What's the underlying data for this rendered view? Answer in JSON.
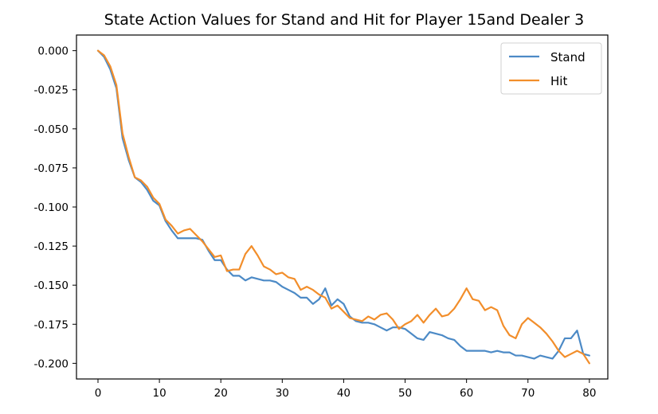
{
  "chart_data": {
    "type": "line",
    "title": "State Action Values for Stand and Hit for Player 15and Dealer 3",
    "xlabel": "",
    "ylabel": "",
    "xlim": [
      -3.5,
      83
    ],
    "ylim": [
      -0.21,
      0.01
    ],
    "xticks": [
      0,
      10,
      20,
      30,
      40,
      50,
      60,
      70,
      80
    ],
    "yticks": [
      0.0,
      -0.025,
      -0.05,
      -0.075,
      -0.1,
      -0.125,
      -0.15,
      -0.175,
      -0.2
    ],
    "ytick_labels": [
      "0.000",
      "-0.025",
      "-0.050",
      "-0.075",
      "-0.100",
      "-0.125",
      "-0.150",
      "-0.175",
      "-0.200"
    ],
    "grid": false,
    "legend_position": "top-right",
    "series": [
      {
        "name": "Stand",
        "color": "#4c8ac6",
        "x": [
          0,
          1,
          2,
          3,
          4,
          5,
          6,
          7,
          8,
          9,
          10,
          11,
          12,
          13,
          14,
          15,
          16,
          17,
          18,
          19,
          20,
          21,
          22,
          23,
          24,
          25,
          26,
          27,
          28,
          29,
          30,
          31,
          32,
          33,
          34,
          35,
          36,
          37,
          38,
          39,
          40,
          41,
          42,
          43,
          44,
          45,
          46,
          47,
          48,
          49,
          50,
          51,
          52,
          53,
          54,
          55,
          56,
          57,
          58,
          59,
          60,
          61,
          62,
          63,
          64,
          65,
          66,
          67,
          68,
          69,
          70,
          71,
          72,
          73,
          74,
          75,
          76,
          77,
          78,
          79,
          80
        ],
        "values": [
          0.0,
          -0.004,
          -0.012,
          -0.024,
          -0.056,
          -0.07,
          -0.081,
          -0.084,
          -0.089,
          -0.096,
          -0.099,
          -0.109,
          -0.115,
          -0.12,
          -0.12,
          -0.12,
          -0.12,
          -0.121,
          -0.128,
          -0.134,
          -0.134,
          -0.14,
          -0.144,
          -0.144,
          -0.147,
          -0.145,
          -0.146,
          -0.147,
          -0.147,
          -0.148,
          -0.151,
          -0.153,
          -0.155,
          -0.158,
          -0.158,
          -0.162,
          -0.159,
          -0.152,
          -0.163,
          -0.159,
          -0.162,
          -0.17,
          -0.173,
          -0.174,
          -0.174,
          -0.175,
          -0.177,
          -0.179,
          -0.177,
          -0.177,
          -0.178,
          -0.181,
          -0.184,
          -0.185,
          -0.18,
          -0.181,
          -0.182,
          -0.184,
          -0.185,
          -0.189,
          -0.192,
          -0.192,
          -0.192,
          -0.192,
          -0.193,
          -0.192,
          -0.193,
          -0.193,
          -0.195,
          -0.195,
          -0.196,
          -0.197,
          -0.195,
          -0.196,
          -0.197,
          -0.192,
          -0.184,
          -0.184,
          -0.179,
          -0.194,
          -0.195
        ]
      },
      {
        "name": "Hit",
        "color": "#f28e2b",
        "x": [
          0,
          1,
          2,
          3,
          4,
          5,
          6,
          7,
          8,
          9,
          10,
          11,
          12,
          13,
          14,
          15,
          16,
          17,
          18,
          19,
          20,
          21,
          22,
          23,
          24,
          25,
          26,
          27,
          28,
          29,
          30,
          31,
          32,
          33,
          34,
          35,
          36,
          37,
          38,
          39,
          40,
          41,
          42,
          43,
          44,
          45,
          46,
          47,
          48,
          49,
          50,
          51,
          52,
          53,
          54,
          55,
          56,
          57,
          58,
          59,
          60,
          61,
          62,
          63,
          64,
          65,
          66,
          67,
          68,
          69,
          70,
          71,
          72,
          73,
          74,
          75,
          76,
          77,
          78,
          79,
          80
        ],
        "values": [
          0.0,
          -0.003,
          -0.01,
          -0.022,
          -0.053,
          -0.068,
          -0.081,
          -0.083,
          -0.087,
          -0.094,
          -0.098,
          -0.108,
          -0.112,
          -0.117,
          -0.115,
          -0.114,
          -0.118,
          -0.122,
          -0.127,
          -0.132,
          -0.131,
          -0.141,
          -0.14,
          -0.14,
          -0.13,
          -0.125,
          -0.131,
          -0.138,
          -0.14,
          -0.143,
          -0.142,
          -0.145,
          -0.146,
          -0.153,
          -0.151,
          -0.153,
          -0.156,
          -0.158,
          -0.165,
          -0.163,
          -0.167,
          -0.171,
          -0.172,
          -0.173,
          -0.17,
          -0.172,
          -0.169,
          -0.168,
          -0.172,
          -0.178,
          -0.175,
          -0.173,
          -0.169,
          -0.174,
          -0.169,
          -0.165,
          -0.17,
          -0.169,
          -0.165,
          -0.159,
          -0.152,
          -0.159,
          -0.16,
          -0.166,
          -0.164,
          -0.166,
          -0.176,
          -0.182,
          -0.184,
          -0.175,
          -0.171,
          -0.174,
          -0.177,
          -0.181,
          -0.186,
          -0.192,
          -0.196,
          -0.194,
          -0.192,
          -0.194,
          -0.2
        ]
      }
    ]
  }
}
